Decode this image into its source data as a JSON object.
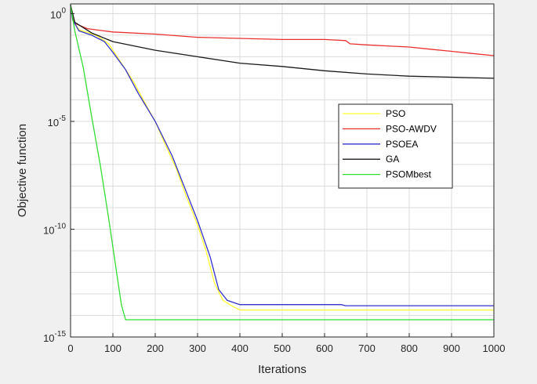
{
  "chart_data": {
    "type": "line",
    "title": "",
    "xlabel": "Iterations",
    "ylabel": "Objective function",
    "xlim": [
      0,
      1000
    ],
    "ylim_log10": [
      -15,
      0.45
    ],
    "y_scale": "log",
    "grid": true,
    "legend_position": "right-center",
    "x_ticks": [
      {
        "value": 0,
        "label": "0"
      },
      {
        "value": 100,
        "label": "100"
      },
      {
        "value": 200,
        "label": "200"
      },
      {
        "value": 300,
        "label": "300"
      },
      {
        "value": 400,
        "label": "400"
      },
      {
        "value": 500,
        "label": "500"
      },
      {
        "value": 600,
        "label": "600"
      },
      {
        "value": 700,
        "label": "700"
      },
      {
        "value": 800,
        "label": "800"
      },
      {
        "value": 900,
        "label": "900"
      },
      {
        "value": 1000,
        "label": "1000"
      }
    ],
    "y_ticks": [
      {
        "exp": 0,
        "base": "10",
        "power": "0"
      },
      {
        "exp": -5,
        "base": "10",
        "power": "-5"
      },
      {
        "exp": -10,
        "base": "10",
        "power": "-10"
      },
      {
        "exp": -15,
        "base": "10",
        "power": "-15"
      }
    ],
    "series": [
      {
        "name": "PSO",
        "color": "#ffff33",
        "points_log10": [
          [
            0,
            0.4
          ],
          [
            5,
            -0.3
          ],
          [
            20,
            -0.75
          ],
          [
            60,
            -1.0
          ],
          [
            90,
            -1.4
          ],
          [
            120,
            -2.3
          ],
          [
            150,
            -3.2
          ],
          [
            180,
            -4.3
          ],
          [
            200,
            -5.0
          ],
          [
            220,
            -5.9
          ],
          [
            250,
            -7.2
          ],
          [
            270,
            -8.3
          ],
          [
            300,
            -9.8
          ],
          [
            320,
            -11.0
          ],
          [
            340,
            -12.5
          ],
          [
            360,
            -13.3
          ],
          [
            380,
            -13.55
          ],
          [
            400,
            -13.75
          ],
          [
            430,
            -13.75
          ],
          [
            500,
            -13.75
          ],
          [
            600,
            -13.75
          ],
          [
            650,
            -13.75
          ],
          [
            700,
            -13.75
          ],
          [
            800,
            -13.75
          ],
          [
            900,
            -13.75
          ],
          [
            1000,
            -13.75
          ]
        ]
      },
      {
        "name": "PSO-AWDV",
        "color": "#e8312f",
        "points_log10": [
          [
            0,
            0.4
          ],
          [
            10,
            -0.45
          ],
          [
            40,
            -0.7
          ],
          [
            100,
            -0.85
          ],
          [
            200,
            -0.95
          ],
          [
            300,
            -1.1
          ],
          [
            400,
            -1.15
          ],
          [
            500,
            -1.2
          ],
          [
            600,
            -1.2
          ],
          [
            650,
            -1.25
          ],
          [
            660,
            -1.4
          ],
          [
            700,
            -1.45
          ],
          [
            800,
            -1.55
          ],
          [
            850,
            -1.65
          ],
          [
            900,
            -1.75
          ],
          [
            950,
            -1.85
          ],
          [
            1000,
            -1.95
          ]
        ]
      },
      {
        "name": "PSOEA",
        "color": "#3333cc",
        "points_log10": [
          [
            0,
            0.4
          ],
          [
            5,
            -0.3
          ],
          [
            20,
            -0.8
          ],
          [
            50,
            -1.0
          ],
          [
            80,
            -1.3
          ],
          [
            100,
            -1.8
          ],
          [
            130,
            -2.6
          ],
          [
            160,
            -3.7
          ],
          [
            200,
            -5.0
          ],
          [
            240,
            -6.6
          ],
          [
            270,
            -8.1
          ],
          [
            300,
            -9.6
          ],
          [
            330,
            -11.3
          ],
          [
            350,
            -12.8
          ],
          [
            370,
            -13.3
          ],
          [
            400,
            -13.5
          ],
          [
            500,
            -13.5
          ],
          [
            640,
            -13.5
          ],
          [
            650,
            -13.55
          ],
          [
            700,
            -13.55
          ],
          [
            800,
            -13.55
          ],
          [
            900,
            -13.55
          ],
          [
            1000,
            -13.55
          ]
        ]
      },
      {
        "name": "GA",
        "color": "#1a1a1a",
        "points_log10": [
          [
            0,
            0.4
          ],
          [
            10,
            -0.4
          ],
          [
            50,
            -0.9
          ],
          [
            100,
            -1.3
          ],
          [
            200,
            -1.7
          ],
          [
            300,
            -2.0
          ],
          [
            400,
            -2.3
          ],
          [
            500,
            -2.45
          ],
          [
            600,
            -2.65
          ],
          [
            700,
            -2.8
          ],
          [
            800,
            -2.9
          ],
          [
            900,
            -2.95
          ],
          [
            1000,
            -3.0
          ]
        ]
      },
      {
        "name": "PSOMbest",
        "color": "#33dd33",
        "points_log10": [
          [
            0,
            0.4
          ],
          [
            10,
            -0.8
          ],
          [
            30,
            -2.5
          ],
          [
            50,
            -4.8
          ],
          [
            70,
            -7.0
          ],
          [
            90,
            -9.5
          ],
          [
            105,
            -11.5
          ],
          [
            120,
            -13.5
          ],
          [
            130,
            -14.2
          ],
          [
            140,
            -14.2
          ],
          [
            200,
            -14.2
          ],
          [
            400,
            -14.2
          ],
          [
            600,
            -14.2
          ],
          [
            800,
            -14.2
          ],
          [
            1000,
            -14.2
          ]
        ]
      }
    ]
  }
}
